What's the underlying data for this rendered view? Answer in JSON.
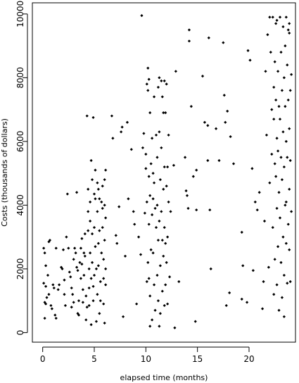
{
  "chart_data": {
    "type": "scatter",
    "title": "",
    "xlabel": "elapsed time (months)",
    "ylabel": "Costs (thousands of dollars)",
    "xlim": [
      -1,
      24.5
    ],
    "ylim": [
      -300,
      10350
    ],
    "xticks": [
      0,
      5,
      10,
      15,
      20
    ],
    "yticks": [
      0,
      2000,
      4000,
      6000,
      8000,
      10000
    ],
    "grid": false,
    "legend": "none",
    "marker_color": "#000000",
    "series": [
      {
        "name": "",
        "points": [
          [
            0.1,
            2650
          ],
          [
            0.2,
            2500
          ],
          [
            0.3,
            2100
          ],
          [
            0.1,
            1550
          ],
          [
            0.3,
            1450
          ],
          [
            0.2,
            950
          ],
          [
            0.3,
            900
          ],
          [
            0.2,
            450
          ],
          [
            0.4,
            1100
          ],
          [
            0.5,
            1800
          ],
          [
            0.6,
            2850
          ],
          [
            0.7,
            2900
          ],
          [
            0.6,
            1200
          ],
          [
            0.8,
            850
          ],
          [
            0.9,
            750
          ],
          [
            1.0,
            1500
          ],
          [
            1.1,
            1400
          ],
          [
            1.2,
            550
          ],
          [
            1.3,
            450
          ],
          [
            1.3,
            2650
          ],
          [
            1.5,
            1350
          ],
          [
            1.6,
            1500
          ],
          [
            1.8,
            2050
          ],
          [
            1.9,
            2000
          ],
          [
            2.0,
            2600
          ],
          [
            2.1,
            1650
          ],
          [
            2.1,
            1200
          ],
          [
            2.2,
            850
          ],
          [
            2.3,
            3000
          ],
          [
            2.4,
            4350
          ],
          [
            2.5,
            2650
          ],
          [
            2.6,
            1900
          ],
          [
            2.7,
            1750
          ],
          [
            2.8,
            1400
          ],
          [
            2.8,
            800
          ],
          [
            2.9,
            1200
          ],
          [
            3.0,
            2300
          ],
          [
            3.0,
            950
          ],
          [
            3.1,
            2650
          ],
          [
            3.2,
            2500
          ],
          [
            3.3,
            4400
          ],
          [
            3.3,
            2050
          ],
          [
            3.4,
            1950
          ],
          [
            3.4,
            600
          ],
          [
            3.5,
            1000
          ],
          [
            3.5,
            550
          ],
          [
            3.6,
            2200
          ],
          [
            3.7,
            2650
          ],
          [
            3.7,
            1700
          ],
          [
            3.8,
            2950
          ],
          [
            3.8,
            2150
          ],
          [
            3.9,
            1350
          ],
          [
            3.9,
            950
          ],
          [
            4.0,
            2500
          ],
          [
            4.0,
            1800
          ],
          [
            4.1,
            3100
          ],
          [
            4.1,
            2400
          ],
          [
            4.2,
            1150
          ],
          [
            4.2,
            400
          ],
          [
            4.3,
            800
          ],
          [
            4.3,
            6800
          ],
          [
            4.4,
            4500
          ],
          [
            4.4,
            3800
          ],
          [
            4.4,
            3200
          ],
          [
            4.5,
            2000
          ],
          [
            4.5,
            1400
          ],
          [
            4.5,
            850
          ],
          [
            4.6,
            4100
          ],
          [
            4.6,
            3500
          ],
          [
            4.6,
            2500
          ],
          [
            4.7,
            1700
          ],
          [
            4.7,
            250
          ],
          [
            4.7,
            5400
          ],
          [
            4.8,
            4800
          ],
          [
            4.8,
            3100
          ],
          [
            4.8,
            2200
          ],
          [
            4.9,
            6750
          ],
          [
            4.9,
            1450
          ],
          [
            4.9,
            1000
          ],
          [
            5.0,
            4350
          ],
          [
            5.0,
            3300
          ],
          [
            5.0,
            1800
          ],
          [
            5.1,
            5100
          ],
          [
            5.1,
            4200
          ],
          [
            5.1,
            2700
          ],
          [
            5.2,
            2000
          ],
          [
            5.2,
            350
          ],
          [
            5.3,
            4700
          ],
          [
            5.3,
            3800
          ],
          [
            5.3,
            1200
          ],
          [
            5.4,
            4500
          ],
          [
            5.4,
            2800
          ],
          [
            5.4,
            2100
          ],
          [
            5.5,
            4200
          ],
          [
            5.5,
            3200
          ],
          [
            5.5,
            600
          ],
          [
            5.6,
            1600
          ],
          [
            5.6,
            1000
          ],
          [
            5.7,
            4100
          ],
          [
            5.7,
            2500
          ],
          [
            5.8,
            4600
          ],
          [
            5.8,
            3900
          ],
          [
            5.8,
            3300
          ],
          [
            5.9,
            2300
          ],
          [
            5.9,
            1700
          ],
          [
            5.9,
            900
          ],
          [
            6.0,
            4800
          ],
          [
            6.0,
            4000
          ],
          [
            6.0,
            2900
          ],
          [
            6.0,
            300
          ],
          [
            6.1,
            5100
          ],
          [
            6.1,
            3600
          ],
          [
            6.1,
            2000
          ],
          [
            6.1,
            1500
          ],
          [
            6.7,
            6800
          ],
          [
            6.8,
            6100
          ],
          [
            7.1,
            3050
          ],
          [
            7.2,
            2800
          ],
          [
            7.4,
            3950
          ],
          [
            7.6,
            6300
          ],
          [
            7.7,
            6450
          ],
          [
            7.8,
            500
          ],
          [
            8.0,
            2400
          ],
          [
            8.2,
            6600
          ],
          [
            8.3,
            4200
          ],
          [
            8.6,
            5750
          ],
          [
            8.8,
            3800
          ],
          [
            8.9,
            3400
          ],
          [
            9.1,
            900
          ],
          [
            9.3,
            3000
          ],
          [
            9.5,
            2450
          ],
          [
            9.6,
            9950
          ],
          [
            9.7,
            5800
          ],
          [
            9.8,
            6250
          ],
          [
            9.9,
            3750
          ],
          [
            10.0,
            5600
          ],
          [
            10.0,
            5150
          ],
          [
            10.1,
            7800
          ],
          [
            10.1,
            4100
          ],
          [
            10.1,
            1600
          ],
          [
            10.2,
            8300
          ],
          [
            10.2,
            7600
          ],
          [
            10.2,
            2200
          ],
          [
            10.3,
            7950
          ],
          [
            10.3,
            4900
          ],
          [
            10.3,
            3400
          ],
          [
            10.3,
            1700
          ],
          [
            10.4,
            6900
          ],
          [
            10.4,
            4300
          ],
          [
            10.4,
            1150
          ],
          [
            10.4,
            200
          ],
          [
            10.5,
            5300
          ],
          [
            10.5,
            2600
          ],
          [
            10.6,
            6100
          ],
          [
            10.6,
            3700
          ],
          [
            10.6,
            400
          ],
          [
            10.7,
            5000
          ],
          [
            10.7,
            4200
          ],
          [
            10.7,
            2500
          ],
          [
            10.8,
            7400
          ],
          [
            10.8,
            4700
          ],
          [
            10.8,
            1500
          ],
          [
            10.9,
            3900
          ],
          [
            10.9,
            700
          ],
          [
            11.0,
            6200
          ],
          [
            11.0,
            3300
          ],
          [
            11.1,
            5500
          ],
          [
            11.1,
            4000
          ],
          [
            11.1,
            1800
          ],
          [
            11.2,
            7700
          ],
          [
            11.2,
            2900
          ],
          [
            11.2,
            1000
          ],
          [
            11.3,
            8000
          ],
          [
            11.3,
            6300
          ],
          [
            11.3,
            3500
          ],
          [
            11.3,
            200
          ],
          [
            11.4,
            4800
          ],
          [
            11.4,
            2100
          ],
          [
            11.4,
            600
          ],
          [
            11.5,
            7900
          ],
          [
            11.5,
            5800
          ],
          [
            11.5,
            3800
          ],
          [
            11.6,
            7400
          ],
          [
            11.6,
            2900
          ],
          [
            11.6,
            1300
          ],
          [
            11.7,
            6900
          ],
          [
            11.7,
            4500
          ],
          [
            11.7,
            2400
          ],
          [
            11.8,
            7900
          ],
          [
            11.8,
            5200
          ],
          [
            11.8,
            3300
          ],
          [
            11.8,
            850
          ],
          [
            11.9,
            6900
          ],
          [
            11.9,
            2800
          ],
          [
            11.9,
            1500
          ],
          [
            12.0,
            7800
          ],
          [
            12.0,
            4600
          ],
          [
            12.0,
            2200
          ],
          [
            12.1,
            5200
          ],
          [
            12.1,
            3000
          ],
          [
            12.1,
            900
          ],
          [
            12.2,
            6200
          ],
          [
            12.2,
            4100
          ],
          [
            12.3,
            1750
          ],
          [
            12.4,
            3800
          ],
          [
            12.7,
            5250
          ],
          [
            12.8,
            150
          ],
          [
            12.9,
            8200
          ],
          [
            13.2,
            1600
          ],
          [
            13.8,
            5500
          ],
          [
            13.9,
            4450
          ],
          [
            14.0,
            4300
          ],
          [
            14.1,
            3900
          ],
          [
            14.2,
            9500
          ],
          [
            14.2,
            9150
          ],
          [
            14.4,
            7100
          ],
          [
            14.6,
            4900
          ],
          [
            14.8,
            350
          ],
          [
            14.9,
            5100
          ],
          [
            14.9,
            3850
          ],
          [
            15.5,
            8050
          ],
          [
            15.7,
            6600
          ],
          [
            16.0,
            6500
          ],
          [
            16.0,
            5400
          ],
          [
            16.1,
            9250
          ],
          [
            16.2,
            3850
          ],
          [
            16.3,
            2000
          ],
          [
            16.8,
            6400
          ],
          [
            17.1,
            5400
          ],
          [
            17.5,
            9100
          ],
          [
            17.6,
            7450
          ],
          [
            17.7,
            6600
          ],
          [
            17.8,
            850
          ],
          [
            17.9,
            6950
          ],
          [
            18.1,
            1250
          ],
          [
            18.2,
            6150
          ],
          [
            18.5,
            5300
          ],
          [
            19.3,
            3150
          ],
          [
            19.3,
            1050
          ],
          [
            19.4,
            2100
          ],
          [
            19.8,
            950
          ],
          [
            19.9,
            8850
          ],
          [
            20.1,
            8550
          ],
          [
            20.3,
            5150
          ],
          [
            20.4,
            1950
          ],
          [
            20.6,
            4100
          ],
          [
            20.8,
            3850
          ],
          [
            21.0,
            4400
          ],
          [
            21.3,
            750
          ],
          [
            21.4,
            1600
          ],
          [
            21.5,
            3500
          ],
          [
            21.6,
            8200
          ],
          [
            21.7,
            6200
          ],
          [
            21.8,
            9350
          ],
          [
            21.9,
            2050
          ],
          [
            22.0,
            9900
          ],
          [
            22.0,
            4700
          ],
          [
            22.1,
            8800
          ],
          [
            22.2,
            7000
          ],
          [
            22.2,
            5600
          ],
          [
            22.3,
            9900
          ],
          [
            22.3,
            3300
          ],
          [
            22.4,
            7700
          ],
          [
            22.4,
            6700
          ],
          [
            22.4,
            1200
          ],
          [
            22.5,
            8500
          ],
          [
            22.5,
            5300
          ],
          [
            22.5,
            2300
          ],
          [
            22.6,
            9700
          ],
          [
            22.6,
            7300
          ],
          [
            22.6,
            4900
          ],
          [
            22.7,
            6100
          ],
          [
            22.7,
            3900
          ],
          [
            22.7,
            1500
          ],
          [
            22.8,
            8200
          ],
          [
            22.8,
            5700
          ],
          [
            22.8,
            2700
          ],
          [
            22.9,
            7100
          ],
          [
            22.9,
            4400
          ],
          [
            22.9,
            700
          ],
          [
            23.0,
            9900
          ],
          [
            23.0,
            6700
          ],
          [
            23.0,
            3600
          ],
          [
            23.1,
            8800
          ],
          [
            23.1,
            5500
          ],
          [
            23.1,
            2200
          ],
          [
            23.2,
            7600
          ],
          [
            23.2,
            4800
          ],
          [
            23.2,
            1100
          ],
          [
            23.3,
            9600
          ],
          [
            23.3,
            6300
          ],
          [
            23.3,
            3000
          ],
          [
            23.4,
            8000
          ],
          [
            23.4,
            5200
          ],
          [
            23.4,
            1800
          ],
          [
            23.5,
            9000
          ],
          [
            23.5,
            7100
          ],
          [
            23.5,
            4000
          ],
          [
            23.6,
            9900
          ],
          [
            23.6,
            6000
          ],
          [
            23.6,
            2800
          ],
          [
            23.7,
            8400
          ],
          [
            23.7,
            5500
          ],
          [
            23.7,
            1550
          ],
          [
            23.8,
            9500
          ],
          [
            23.8,
            7300
          ],
          [
            23.8,
            3400
          ],
          [
            23.9,
            9400
          ],
          [
            23.9,
            6400
          ],
          [
            23.9,
            4500
          ],
          [
            23.9,
            2600
          ],
          [
            24.0,
            7600
          ],
          [
            24.0,
            5400
          ],
          [
            24.0,
            1600
          ],
          [
            24.1,
            8100
          ],
          [
            24.1,
            3800
          ],
          [
            23.4,
            500
          ],
          [
            23.6,
            4100
          ],
          [
            22.7,
            9800
          ],
          [
            23.9,
            9700
          ]
        ]
      }
    ]
  }
}
